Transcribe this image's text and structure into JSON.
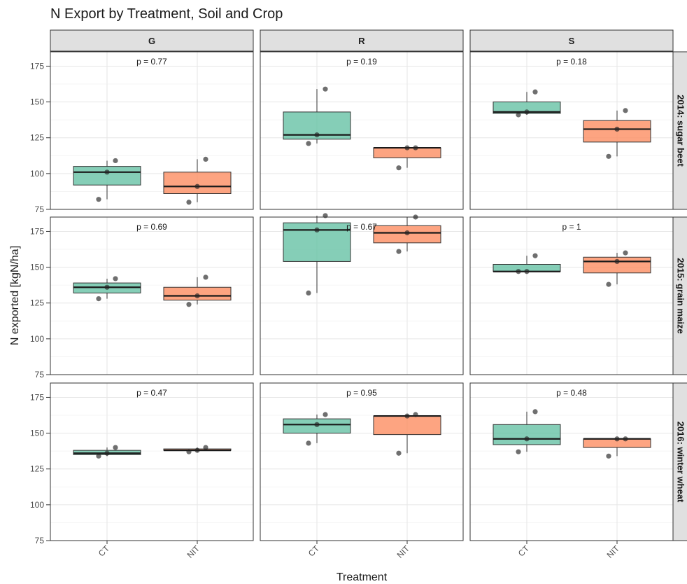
{
  "chart_data": {
    "type": "box",
    "title": "N Export by Treatment, Soil and Crop",
    "xlabel": "Treatment",
    "ylabel": "N exported [kgN/ha]",
    "ylim": [
      75,
      185
    ],
    "yticks": [
      75,
      100,
      125,
      150,
      175
    ],
    "grid": true,
    "categories": [
      "CT",
      "NIT"
    ],
    "columns": [
      "G",
      "R",
      "S"
    ],
    "rows": [
      "2014: sugar beet",
      "2015: grain maize",
      "2016: winter wheat"
    ],
    "colors": {
      "CT": "#66c2a5",
      "NIT": "#fc8d62"
    },
    "panels": [
      {
        "col": "G",
        "row": "2014: sugar beet",
        "p_label": "p = 0.77",
        "boxes": [
          {
            "treatment": "CT",
            "min": 82,
            "q1": 92,
            "median": 101,
            "q3": 105,
            "max": 109,
            "points": [
              82,
              101,
              109
            ]
          },
          {
            "treatment": "NIT",
            "min": 80,
            "q1": 86,
            "median": 91,
            "q3": 101,
            "max": 110,
            "points": [
              80,
              91,
              110
            ]
          }
        ]
      },
      {
        "col": "R",
        "row": "2014: sugar beet",
        "p_label": "p = 0.19",
        "boxes": [
          {
            "treatment": "CT",
            "min": 121,
            "q1": 124,
            "median": 127,
            "q3": 143,
            "max": 159,
            "points": [
              121,
              127,
              159
            ]
          },
          {
            "treatment": "NIT",
            "min": 104,
            "q1": 111,
            "median": 118,
            "q3": 118,
            "max": 118,
            "points": [
              104,
              118,
              118
            ]
          }
        ]
      },
      {
        "col": "S",
        "row": "2014: sugar beet",
        "p_label": "p = 0.18",
        "boxes": [
          {
            "treatment": "CT",
            "min": 141,
            "q1": 142,
            "median": 143,
            "q3": 150,
            "max": 157,
            "points": [
              141,
              143,
              157
            ]
          },
          {
            "treatment": "NIT",
            "min": 112,
            "q1": 122,
            "median": 131,
            "q3": 137,
            "max": 144,
            "points": [
              112,
              131,
              144
            ]
          }
        ]
      },
      {
        "col": "G",
        "row": "2015: grain maize",
        "p_label": "p = 0.69",
        "boxes": [
          {
            "treatment": "CT",
            "min": 128,
            "q1": 132,
            "median": 136,
            "q3": 139,
            "max": 142,
            "points": [
              128,
              136,
              142
            ]
          },
          {
            "treatment": "NIT",
            "min": 124,
            "q1": 127,
            "median": 130,
            "q3": 136,
            "max": 143,
            "points": [
              124,
              130,
              143
            ]
          }
        ]
      },
      {
        "col": "R",
        "row": "2015: grain maize",
        "p_label": "p = 0.67",
        "boxes": [
          {
            "treatment": "CT",
            "min": 132,
            "q1": 154,
            "median": 176,
            "q3": 181,
            "max": 186,
            "points": [
              132,
              176,
              186
            ]
          },
          {
            "treatment": "NIT",
            "min": 161,
            "q1": 167,
            "median": 174,
            "q3": 179,
            "max": 185,
            "points": [
              161,
              174,
              185
            ]
          }
        ]
      },
      {
        "col": "S",
        "row": "2015: grain maize",
        "p_label": "p = 1",
        "boxes": [
          {
            "treatment": "CT",
            "min": 147,
            "q1": 147,
            "median": 147,
            "q3": 152,
            "max": 158,
            "points": [
              147,
              147,
              158
            ]
          },
          {
            "treatment": "NIT",
            "min": 138,
            "q1": 146,
            "median": 154,
            "q3": 157,
            "max": 160,
            "points": [
              138,
              154,
              160
            ]
          }
        ]
      },
      {
        "col": "G",
        "row": "2016: winter wheat",
        "p_label": "p = 0.47",
        "boxes": [
          {
            "treatment": "CT",
            "min": 134,
            "q1": 135,
            "median": 136,
            "q3": 138,
            "max": 140,
            "points": [
              134,
              136,
              140
            ]
          },
          {
            "treatment": "NIT",
            "min": 137,
            "q1": 138,
            "median": 138,
            "q3": 139,
            "max": 140,
            "points": [
              137,
              138,
              140
            ]
          }
        ]
      },
      {
        "col": "R",
        "row": "2016: winter wheat",
        "p_label": "p = 0.95",
        "boxes": [
          {
            "treatment": "CT",
            "min": 143,
            "q1": 150,
            "median": 156,
            "q3": 160,
            "max": 163,
            "points": [
              143,
              156,
              163
            ]
          },
          {
            "treatment": "NIT",
            "min": 136,
            "q1": 149,
            "median": 162,
            "q3": 162,
            "max": 163,
            "points": [
              136,
              162,
              163
            ]
          }
        ]
      },
      {
        "col": "S",
        "row": "2016: winter wheat",
        "p_label": "p = 0.48",
        "boxes": [
          {
            "treatment": "CT",
            "min": 137,
            "q1": 142,
            "median": 146,
            "q3": 156,
            "max": 165,
            "points": [
              137,
              146,
              165
            ]
          },
          {
            "treatment": "NIT",
            "min": 134,
            "q1": 140,
            "median": 146,
            "q3": 146,
            "max": 146,
            "points": [
              134,
              146,
              146
            ]
          }
        ]
      }
    ]
  }
}
